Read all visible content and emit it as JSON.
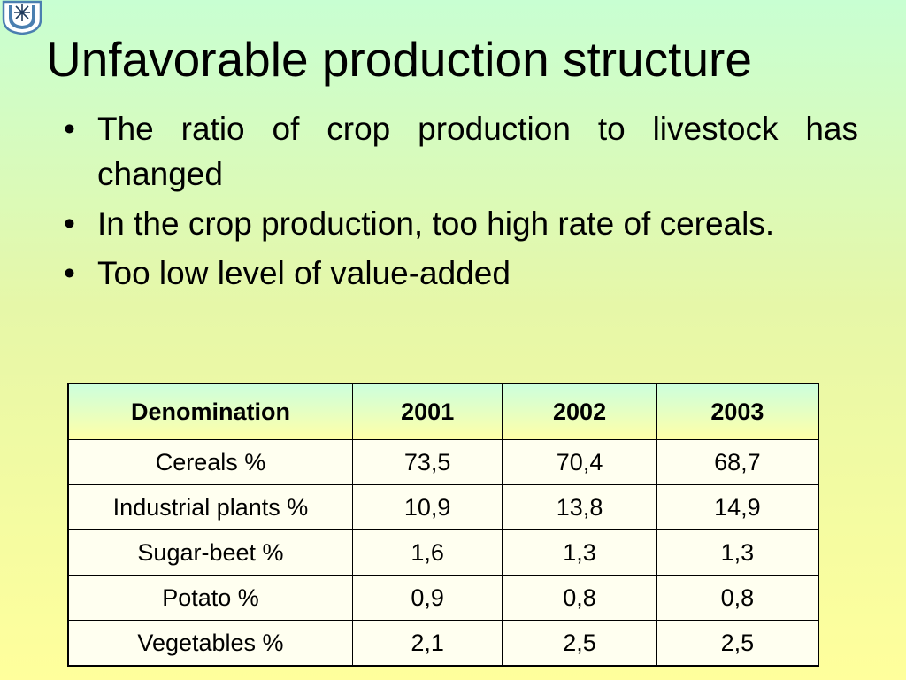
{
  "logo": {
    "icon": "university-emblem-icon"
  },
  "slide": {
    "title": "Unfavorable production structure",
    "bullets": [
      "The ratio of crop production to livestock has changed",
      "In the crop production, too high rate of cereals.",
      "Too low level of value-added"
    ]
  },
  "table": {
    "headers": [
      "Denomination",
      "2001",
      "2002",
      "2003"
    ],
    "rows": [
      [
        "Cereals %",
        "73,5",
        "70,4",
        "68,7"
      ],
      [
        "Industrial plants %",
        "10,9",
        "13,8",
        "14,9"
      ],
      [
        "Sugar-beet %",
        "1,6",
        "1,3",
        "1,3"
      ],
      [
        "Potato %",
        "0,9",
        "0,8",
        "0,8"
      ],
      [
        "Vegetables %",
        "2,1",
        "2,5",
        "2,5"
      ]
    ]
  }
}
